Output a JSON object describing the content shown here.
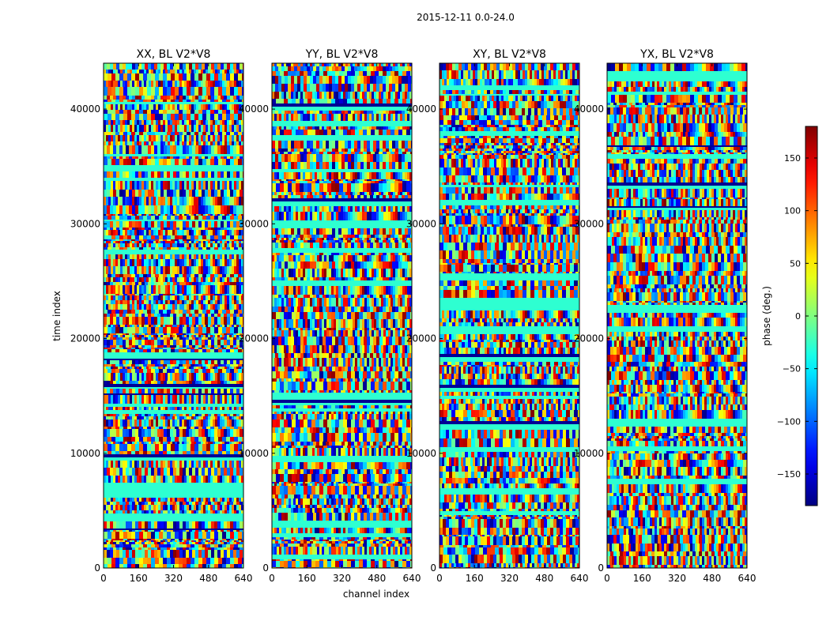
{
  "suptitle": "2015-12-11 0.0-24.0",
  "chart_data": {
    "type": "heatmap",
    "subplots": [
      {
        "title": "XX, BL V2*V8"
      },
      {
        "title": "YY, BL V2*V8"
      },
      {
        "title": "XY, BL V2*V8"
      },
      {
        "title": "YX, BL V2*V8"
      }
    ],
    "xlabel": "channel index",
    "ylabel": "time index",
    "x_ticks": [
      "0",
      "160",
      "320",
      "480",
      "640"
    ],
    "y_ticks": [
      "0",
      "10000",
      "20000",
      "30000",
      "40000"
    ],
    "xlim": [
      0,
      640
    ],
    "ylim": [
      0,
      44000
    ],
    "colorbar": {
      "label": "phase (deg.)",
      "ticks": [
        "150",
        "100",
        "50",
        "0",
        "−50",
        "−100",
        "−150"
      ],
      "range": [
        -180,
        180
      ],
      "colormap": "jet"
    }
  }
}
